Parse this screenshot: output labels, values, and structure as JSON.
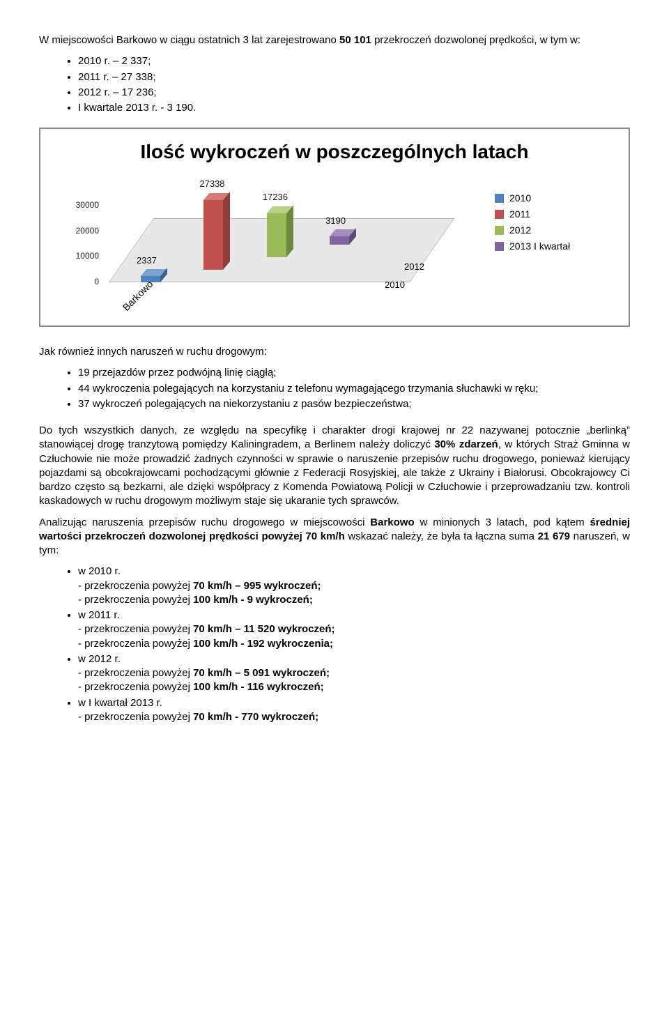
{
  "intro": {
    "line1_prefix": "W miejscowości Barkowo w ciągu ostatnich 3 lat zarejestrowano ",
    "bold_count": "50 101",
    "line1_suffix": "  przekroczeń dozwolonej prędkości, w tym w:",
    "bullets": [
      "2010 r. – 2 337;",
      "2011 r. – 27 338;",
      "2012 r. – 17 236;",
      "I kwartale 2013 r.  -  3 190."
    ]
  },
  "chart": {
    "title": "Ilość wykroczeń w poszczególnych latach",
    "type": "bar-3d",
    "categories": [
      "Barkowo"
    ],
    "depth_axis": [
      "2010",
      "2012"
    ],
    "yticks": [
      "0",
      "10000",
      "20000",
      "30000"
    ],
    "ymax": 30000,
    "series": [
      {
        "label": "2010",
        "value": 2337,
        "color": "#4f81bd",
        "side": "#3a5f8a",
        "top": "#7aa3d4",
        "z": 0
      },
      {
        "label": "2011",
        "value": 27338,
        "color": "#c0504d",
        "side": "#8e3b39",
        "top": "#d77a77",
        "z": 1
      },
      {
        "label": "2012",
        "value": 17236,
        "color": "#9bbb59",
        "side": "#6f8a3f",
        "top": "#b7d283",
        "z": 2
      },
      {
        "label": "2013 I kwartał",
        "value": 3190,
        "color": "#8064a2",
        "side": "#5d4976",
        "top": "#a28cc0",
        "z": 3
      }
    ],
    "background_color": "#ffffff",
    "floor_color": "#e8e8e8"
  },
  "section2": {
    "lead": "Jak również innych naruszeń w ruchu drogowym:",
    "bullets": [
      "19 przejazdów przez podwójną linię ciągłą;",
      "44 wykroczenia polegających na korzystaniu z telefonu wymagającego trzymania słuchawki w ręku;",
      "37 wykroczeń polegających na niekorzystaniu z pasów bezpieczeństwa;"
    ]
  },
  "para1": "Do tych wszystkich danych, ze względu na specyfikę i charakter drogi krajowej nr 22 nazywanej potocznie „berlinką” stanowiącej drogę tranzytową pomiędzy Kaliningradem, a Berlinem należy doliczyć 30% zdarzeń, w których Straż Gminna w Człuchowie nie może prowadzić żadnych czynności w sprawie o naruszenie przepisów ruchu drogowego, ponieważ kierujący pojazdami są obcokrajowcami pochodzącymi głównie z Federacji Rosyjskiej, ale także z Ukrainy i Białorusi. Obcokrajowcy Ci bardzo często są bezkarni, ale dzięki współpracy z Komenda Powiatową Policji w Człuchowie i przeprowadzaniu tzw. kontroli kaskadowych w ruchu drogowym możliwym  staje się ukaranie tych sprawców.",
  "para1_bold": "30% zdarzeń",
  "para2_prefix": "Analizując naruszenia przepisów ruchu drogowego w miejscowości ",
  "para2_bold1": "Barkowo",
  "para2_mid": " w minionych 3 latach, pod kątem ",
  "para2_bold2": "średniej wartości przekroczeń dozwolonej prędkości powyżej 70 km/h",
  "para2_mid2": " wskazać należy, że była ta łączna suma ",
  "para2_bold3": "21 679",
  "para2_suffix": " naruszeń, w tym:",
  "section3": {
    "items": [
      {
        "year": "w 2010 r.",
        "lines": [
          "- przekroczenia powyżej 70 km/h – 995 wykroczeń;",
          "- przekroczenia powyżej 100 km/h - 9 wykroczeń;"
        ],
        "bold": [
          "70 km/h – 995 wykroczeń;",
          "100 km/h - 9 wykroczeń;"
        ]
      },
      {
        "year": "w 2011 r.",
        "lines": [
          "- przekroczenia powyżej 70 km/h – 11 520 wykroczeń;",
          "- przekroczenia powyżej 100 km/h - 192 wykroczenia;"
        ],
        "bold": [
          "70 km/h – 11 520 wykroczeń;",
          "100 km/h - 192 wykroczenia;"
        ]
      },
      {
        "year": "w 2012 r.",
        "lines": [
          "- przekroczenia powyżej 70 km/h – 5 091 wykroczeń;",
          "- przekroczenia powyżej 100 km/h - 116 wykroczeń;"
        ],
        "bold": [
          "70 km/h – 5 091 wykroczeń;",
          "100 km/h - 116 wykroczeń;"
        ]
      },
      {
        "year": "w I kwartał 2013 r.",
        "lines": [
          "- przekroczenia powyżej 70 km/h - 770 wykroczeń;"
        ],
        "bold": [
          "70 km/h - 770 wykroczeń;"
        ]
      }
    ]
  }
}
